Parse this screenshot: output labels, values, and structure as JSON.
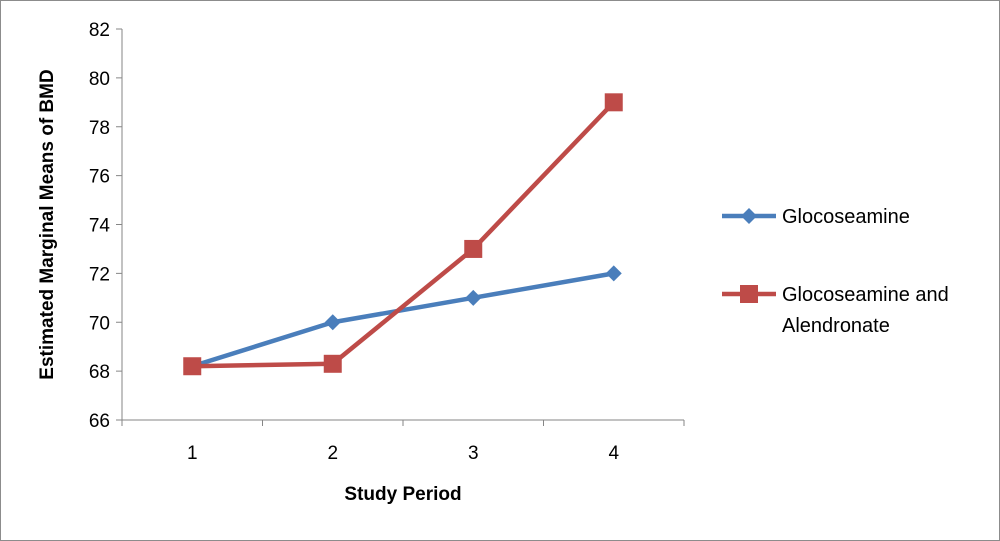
{
  "chart_data": {
    "type": "line",
    "title": "",
    "xlabel": "Study Period",
    "ylabel": "Estimated Marginal Means of BMD",
    "categories": [
      "1",
      "2",
      "3",
      "4"
    ],
    "ylim": [
      66,
      82
    ],
    "yticks": [
      66,
      68,
      70,
      72,
      74,
      76,
      78,
      80,
      82
    ],
    "grid": false,
    "legend_position": "right",
    "series": [
      {
        "name": "Glocoseamine",
        "legend_lines": [
          "Glocoseamine"
        ],
        "values": [
          68.2,
          70,
          71,
          72
        ],
        "color": "#4a7ebb",
        "marker": "diamond"
      },
      {
        "name": "Glocoseamine and Alendronate",
        "legend_lines": [
          "Glocoseamine and",
          "Alendronate"
        ],
        "values": [
          68.2,
          68.3,
          73,
          79
        ],
        "color": "#be4b48",
        "marker": "square"
      }
    ]
  }
}
